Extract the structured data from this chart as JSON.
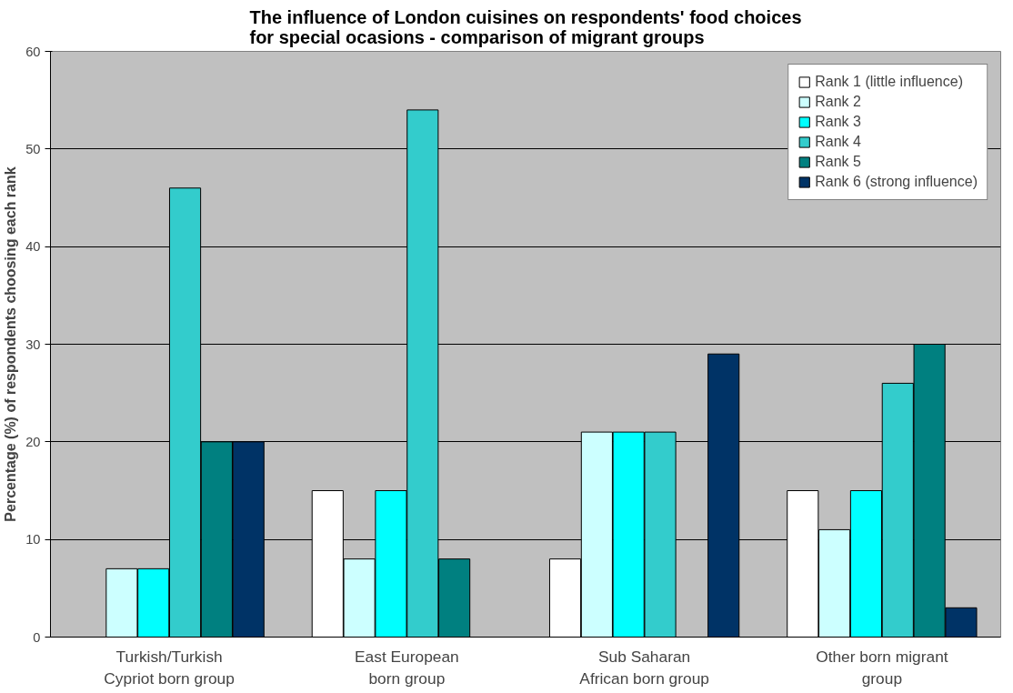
{
  "chart_data": {
    "type": "bar",
    "title": "The influence of London cuisines on respondents' food choices\nfor special ocasions - comparison of migrant groups",
    "ylabel": "Percentage (%) of respondents choosing each rank",
    "categories": [
      "Turkish/Turkish\nCypriot born group",
      "East European\nborn group",
      "Sub Saharan\nAfrican born group",
      "Other born migrant\ngroup"
    ],
    "series": [
      {
        "name": "Rank 1 (little influence)",
        "color": "#ffffff",
        "values": [
          null,
          15,
          8,
          15
        ]
      },
      {
        "name": "Rank 2",
        "color": "#ccffff",
        "values": [
          7,
          8,
          21,
          11
        ]
      },
      {
        "name": "Rank 3",
        "color": "#00ffff",
        "values": [
          7,
          15,
          21,
          15
        ]
      },
      {
        "name": "Rank 4",
        "color": "#33cccc",
        "values": [
          46,
          54,
          21,
          26
        ]
      },
      {
        "name": "Rank 5",
        "color": "#008080",
        "values": [
          20,
          8,
          null,
          30
        ]
      },
      {
        "name": "Rank 6 (strong influence)",
        "color": "#003366",
        "values": [
          20,
          null,
          29,
          3
        ]
      }
    ],
    "ylim": [
      0,
      60
    ],
    "yticks": [
      0,
      10,
      20,
      30,
      40,
      50,
      60
    ],
    "grid": "y",
    "legend": "top right"
  }
}
